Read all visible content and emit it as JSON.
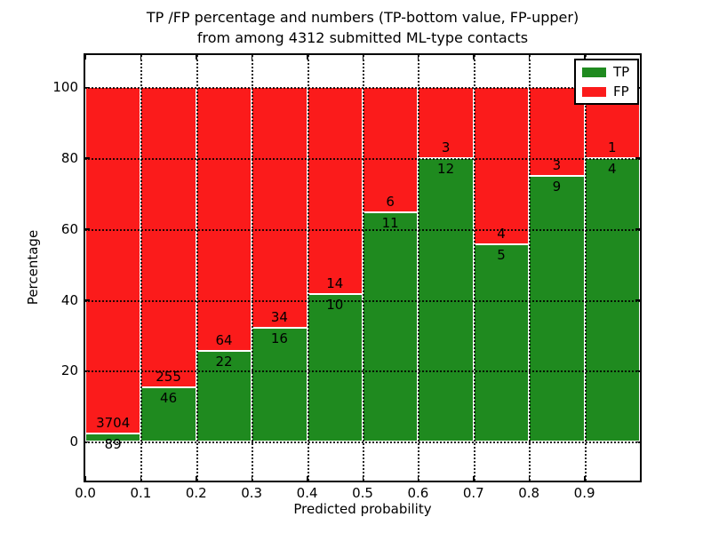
{
  "figure": {
    "title_line1": "TP /FP percentage and numbers (TP-bottom value, FP-upper)",
    "title_line2": "from among 4312 submitted ML-type contacts"
  },
  "chart_data": {
    "type": "bar",
    "stacked": true,
    "normalized_to_percent": true,
    "title": "TP /FP percentage and numbers (TP-bottom value, FP-upper)\nfrom among 4312 submitted ML-type contacts",
    "xlabel": "Predicted probability",
    "ylabel": "Percentage",
    "bin_start": [
      0.0,
      0.1,
      0.2,
      0.3,
      0.4,
      0.5,
      0.6,
      0.7,
      0.8,
      0.9
    ],
    "bin_width": 0.1,
    "xtick_labels": [
      "0.0",
      "0.1",
      "0.2",
      "0.3",
      "0.4",
      "0.5",
      "0.6",
      "0.7",
      "0.8",
      "0.9"
    ],
    "yticks": [
      0,
      20,
      40,
      60,
      80,
      100
    ],
    "ytick_labels": [
      "0",
      "20",
      "40",
      "60",
      "80",
      "100"
    ],
    "xlim": [
      0.0,
      1.0
    ],
    "ylim": [
      -11,
      109
    ],
    "grid": "dotted black, drawn above bars",
    "series": [
      {
        "name": "TP",
        "color": "#1F8A1F",
        "counts": [
          89,
          46,
          22,
          16,
          10,
          11,
          12,
          5,
          9,
          4
        ]
      },
      {
        "name": "FP",
        "color": "#FB1B1B",
        "counts": [
          3704,
          255,
          64,
          34,
          14,
          6,
          3,
          4,
          3,
          1
        ]
      }
    ],
    "tp_percent_of_bin": [
      2.35,
      15.28,
      25.58,
      32.0,
      41.67,
      64.71,
      80.0,
      55.56,
      75.0,
      80.0
    ],
    "annotation_rule": "FP count printed just above green/red boundary, TP count just below",
    "legend": {
      "position": "upper right",
      "entries": [
        "TP",
        "FP"
      ]
    },
    "total_contacts": 4312,
    "bar_edge_color": "#ffffff"
  }
}
